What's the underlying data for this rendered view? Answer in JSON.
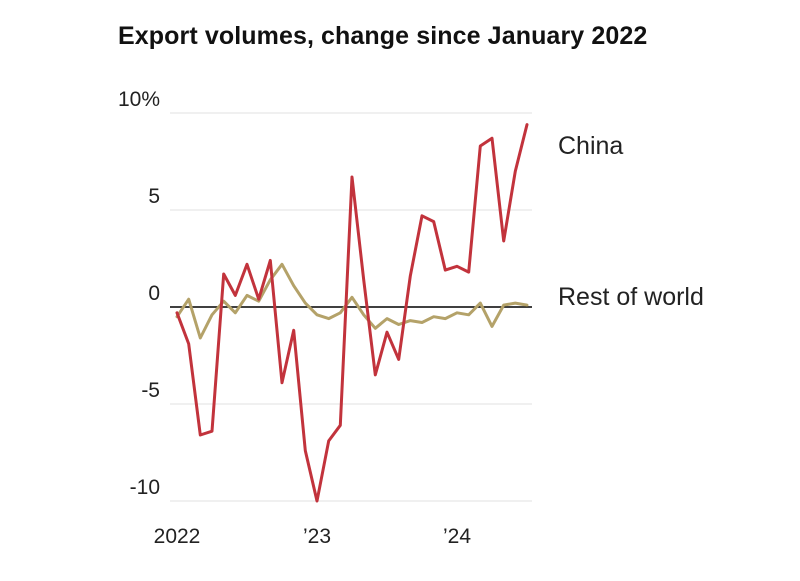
{
  "chart_data": {
    "type": "line",
    "title": "Export volumes, change since January 2022",
    "unit": "% change since January 2022",
    "x_unit": "month",
    "x_start": "2022-01",
    "ylim": [
      -10,
      10
    ],
    "grid": "horizontal",
    "legend_position": "right-annotations",
    "colors": {
      "china": "#c2333c",
      "rest_of_world": "#b4a269",
      "gridline": "#e0e0e0",
      "zero_line": "#000000",
      "text": "#222222"
    },
    "yticks": [
      {
        "value": 10,
        "label": "10%"
      },
      {
        "value": 5,
        "label": "5"
      },
      {
        "value": 0,
        "label": "0"
      },
      {
        "value": -5,
        "label": "-5"
      },
      {
        "value": -10,
        "label": "-10"
      }
    ],
    "xticks": [
      {
        "index": 0,
        "label": "2022"
      },
      {
        "index": 12,
        "label": "’23"
      },
      {
        "index": 24,
        "label": "’24"
      }
    ],
    "series": [
      {
        "name": "China",
        "color": "#c2333c",
        "values": [
          -0.3,
          -1.9,
          -6.6,
          -6.4,
          1.7,
          0.6,
          2.2,
          0.4,
          2.4,
          -3.9,
          -1.2,
          -7.4,
          -10.0,
          -6.9,
          -6.1,
          6.7,
          1.4,
          -3.5,
          -1.3,
          -2.7,
          1.6,
          4.7,
          4.4,
          1.9,
          2.1,
          1.8,
          8.3,
          8.7,
          3.4,
          7.0,
          9.4
        ]
      },
      {
        "name": "Rest of world",
        "color": "#b4a269",
        "values": [
          -0.5,
          0.4,
          -1.6,
          -0.4,
          0.3,
          -0.3,
          0.6,
          0.3,
          1.4,
          2.2,
          1.1,
          0.2,
          -0.4,
          -0.6,
          -0.3,
          0.5,
          -0.4,
          -1.1,
          -0.6,
          -0.9,
          -0.7,
          -0.8,
          -0.5,
          -0.6,
          -0.3,
          -0.4,
          0.2,
          -1.0,
          0.1,
          0.2,
          0.1
        ]
      }
    ]
  }
}
